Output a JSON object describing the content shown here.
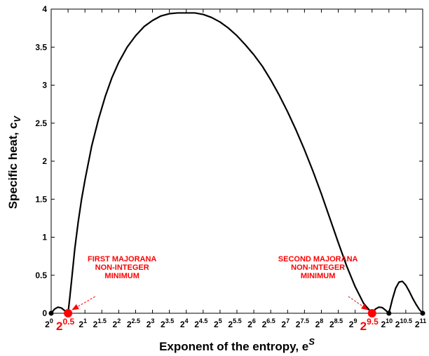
{
  "chart_data": {
    "type": "line",
    "xlabel": "Exponent of the entropy, e",
    "xlabel_sup": "S",
    "ylabel": "Specific heat, c",
    "ylabel_sub": "V",
    "x_scale": "log2",
    "xlim": [
      0,
      11
    ],
    "ylim": [
      0,
      4
    ],
    "grid": false,
    "legend": "none",
    "x_ticks": [
      {
        "base": "2",
        "exp": "0",
        "emphasized": false
      },
      {
        "base": "2",
        "exp": "0.5",
        "emphasized": true
      },
      {
        "base": "2",
        "exp": "1",
        "emphasized": false
      },
      {
        "base": "2",
        "exp": "1.5",
        "emphasized": false
      },
      {
        "base": "2",
        "exp": "2",
        "emphasized": false
      },
      {
        "base": "2",
        "exp": "2.5",
        "emphasized": false
      },
      {
        "base": "2",
        "exp": "3",
        "emphasized": false
      },
      {
        "base": "2",
        "exp": "3.5",
        "emphasized": false
      },
      {
        "base": "2",
        "exp": "4",
        "emphasized": false
      },
      {
        "base": "2",
        "exp": "4.5",
        "emphasized": false
      },
      {
        "base": "2",
        "exp": "5",
        "emphasized": false
      },
      {
        "base": "2",
        "exp": "5.5",
        "emphasized": false
      },
      {
        "base": "2",
        "exp": "6",
        "emphasized": false
      },
      {
        "base": "2",
        "exp": "6.5",
        "emphasized": false
      },
      {
        "base": "2",
        "exp": "7",
        "emphasized": false
      },
      {
        "base": "2",
        "exp": "7.5",
        "emphasized": false
      },
      {
        "base": "2",
        "exp": "8",
        "emphasized": false
      },
      {
        "base": "2",
        "exp": "8.5",
        "emphasized": false
      },
      {
        "base": "2",
        "exp": "9",
        "emphasized": false
      },
      {
        "base": "2",
        "exp": "9.5",
        "emphasized": true
      },
      {
        "base": "2",
        "exp": "10",
        "emphasized": false
      },
      {
        "base": "2",
        "exp": "10.5",
        "emphasized": false
      },
      {
        "base": "2",
        "exp": "11",
        "emphasized": false
      }
    ],
    "y_ticks": [
      "0",
      "0.5",
      "1",
      "1.5",
      "2",
      "2.5",
      "3",
      "3.5",
      "4"
    ],
    "series": [
      {
        "color": "#000000",
        "points": [
          [
            0,
            0
          ],
          [
            0.1,
            0.055
          ],
          [
            0.2,
            0.08
          ],
          [
            0.3,
            0.07
          ],
          [
            0.4,
            0.035
          ],
          [
            0.5,
            0
          ],
          [
            0.55,
            0.2
          ],
          [
            0.62,
            0.5
          ],
          [
            0.7,
            0.85
          ],
          [
            0.8,
            1.2
          ],
          [
            0.9,
            1.5
          ],
          [
            1.0,
            1.75
          ],
          [
            1.2,
            2.2
          ],
          [
            1.4,
            2.55
          ],
          [
            1.6,
            2.85
          ],
          [
            1.8,
            3.1
          ],
          [
            2.0,
            3.3
          ],
          [
            2.25,
            3.5
          ],
          [
            2.5,
            3.65
          ],
          [
            2.75,
            3.77
          ],
          [
            3.0,
            3.85
          ],
          [
            3.25,
            3.91
          ],
          [
            3.5,
            3.94
          ],
          [
            3.75,
            3.95
          ],
          [
            4.0,
            3.95
          ],
          [
            4.25,
            3.95
          ],
          [
            4.5,
            3.93
          ],
          [
            4.75,
            3.89
          ],
          [
            5.0,
            3.83
          ],
          [
            5.25,
            3.75
          ],
          [
            5.5,
            3.65
          ],
          [
            5.75,
            3.53
          ],
          [
            6.0,
            3.4
          ],
          [
            6.25,
            3.25
          ],
          [
            6.5,
            3.07
          ],
          [
            6.75,
            2.87
          ],
          [
            7.0,
            2.65
          ],
          [
            7.25,
            2.41
          ],
          [
            7.5,
            2.15
          ],
          [
            7.75,
            1.87
          ],
          [
            8.0,
            1.57
          ],
          [
            8.25,
            1.25
          ],
          [
            8.5,
            0.93
          ],
          [
            8.75,
            0.62
          ],
          [
            9.0,
            0.35
          ],
          [
            9.25,
            0.13
          ],
          [
            9.5,
            0
          ],
          [
            9.6,
            0.055
          ],
          [
            9.7,
            0.08
          ],
          [
            9.8,
            0.075
          ],
          [
            9.9,
            0.04
          ],
          [
            10.0,
            0
          ],
          [
            10.1,
            0.18
          ],
          [
            10.2,
            0.33
          ],
          [
            10.3,
            0.41
          ],
          [
            10.4,
            0.42
          ],
          [
            10.5,
            0.37
          ],
          [
            10.6,
            0.29
          ],
          [
            10.7,
            0.2
          ],
          [
            10.8,
            0.12
          ],
          [
            10.9,
            0.05
          ],
          [
            11.0,
            0
          ]
        ]
      }
    ],
    "markers": [
      {
        "x": 0,
        "y": 0,
        "color": "#000000",
        "size": "small"
      },
      {
        "x": 0.5,
        "y": 0,
        "color": "#ff0000",
        "size": "large"
      },
      {
        "x": 9.5,
        "y": 0,
        "color": "#ff0000",
        "size": "large"
      },
      {
        "x": 10,
        "y": 0,
        "color": "#000000",
        "size": "small"
      },
      {
        "x": 11,
        "y": 0,
        "color": "#000000",
        "size": "small"
      }
    ],
    "annotations": [
      {
        "lines": [
          "FIRST MAJORANA",
          "NON-INTEGER",
          "MINIMUM"
        ],
        "color": "#ff0000",
        "text_x": 2.1,
        "text_y": 0.68,
        "arrow_to_x": 0.5,
        "arrow_to_y": 0,
        "arrow_from_x": 1.3,
        "arrow_from_y": 0.22
      },
      {
        "lines": [
          "SECOND MAJORANA",
          "NON-INTEGER",
          "MINIMUM"
        ],
        "color": "#ff0000",
        "text_x": 7.9,
        "text_y": 0.68,
        "arrow_to_x": 9.5,
        "arrow_to_y": 0,
        "arrow_from_x": 8.8,
        "arrow_from_y": 0.22
      }
    ]
  }
}
